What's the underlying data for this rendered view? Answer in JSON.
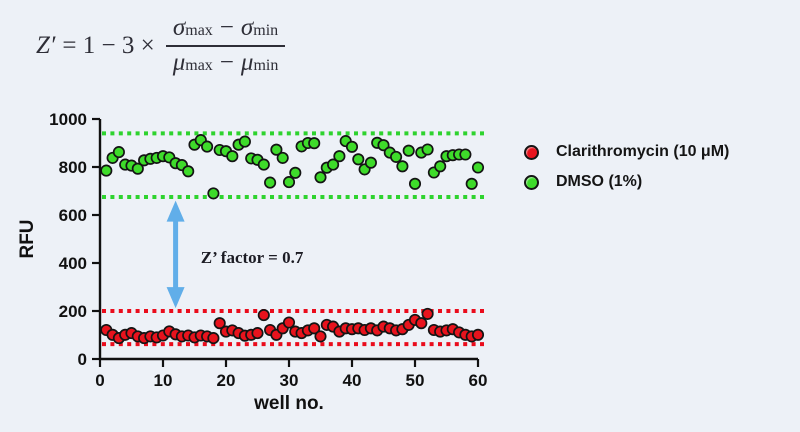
{
  "page": {
    "background": "#edf1f7"
  },
  "formula": {
    "z": "Z′",
    "rhs": "= 1 − 3 ×",
    "sigma": "σ",
    "mu": "μ",
    "max": "max",
    "min": "min",
    "minus": "−"
  },
  "legend": {
    "items": [
      {
        "label": "Clarithromycin (10 μM)",
        "color": "#e8131d"
      },
      {
        "label": "DMSO (1%)",
        "color": "#3edb2a"
      }
    ]
  },
  "chart_data": {
    "type": "scatter",
    "title": "",
    "xlabel": "well no.",
    "ylabel": "RFU",
    "xlim": [
      0,
      60
    ],
    "ylim": [
      0,
      1000
    ],
    "x_ticks": [
      0,
      10,
      20,
      30,
      40,
      50,
      60
    ],
    "y_ticks": [
      0,
      200,
      400,
      600,
      800,
      1000
    ],
    "grid": false,
    "legend_position": "right",
    "annotation": {
      "text": "Z’ factor = 0.7",
      "x": 16,
      "y": 400
    },
    "arrow": {
      "x": 12,
      "from": 660,
      "to": 212,
      "color": "#61aee9"
    },
    "reference_lines": [
      {
        "name": "dmso-upper-limit",
        "value": 940,
        "color": "#2ed32e",
        "style": "dashed"
      },
      {
        "name": "dmso-lower-limit",
        "value": 675,
        "color": "#2ed32e",
        "style": "dashed"
      },
      {
        "name": "clarithromycin-upper-limit",
        "value": 200,
        "color": "#ea0c1c",
        "style": "dashed"
      },
      {
        "name": "clarithromycin-lower-limit",
        "value": 62,
        "color": "#ea0c1c",
        "style": "dashed"
      }
    ],
    "series": [
      {
        "name": "Clarithromycin (10 μM)",
        "color": "#e8131d",
        "x": [
          1,
          2,
          3,
          4,
          5,
          6,
          7,
          8,
          9,
          10,
          11,
          12,
          13,
          14,
          15,
          16,
          17,
          18,
          19,
          20,
          21,
          22,
          23,
          24,
          25,
          26,
          27,
          28,
          29,
          30,
          31,
          32,
          33,
          34,
          35,
          36,
          37,
          38,
          39,
          40,
          41,
          42,
          43,
          44,
          45,
          46,
          47,
          48,
          49,
          50,
          51,
          52,
          53,
          54,
          55,
          56,
          57,
          58,
          59,
          60
        ],
        "values": [
          121,
          101,
          87,
          101,
          108,
          94,
          87,
          94,
          90,
          98,
          115,
          103,
          94,
          98,
          90,
          98,
          94,
          87,
          149,
          114,
          119,
          108,
          97,
          101,
          108,
          183,
          121,
          101,
          128,
          152,
          114,
          108,
          119,
          128,
          94,
          142,
          135,
          114,
          128,
          124,
          128,
          121,
          128,
          119,
          135,
          128,
          119,
          124,
          142,
          163,
          149,
          188,
          121,
          114,
          119,
          124,
          111,
          101,
          94,
          101
        ]
      },
      {
        "name": "DMSO (1%)",
        "color": "#3edb2a",
        "x": [
          1,
          2,
          3,
          4,
          5,
          6,
          7,
          8,
          9,
          10,
          11,
          12,
          13,
          14,
          15,
          16,
          17,
          18,
          19,
          20,
          21,
          22,
          23,
          24,
          25,
          26,
          27,
          28,
          29,
          30,
          31,
          32,
          33,
          34,
          35,
          36,
          37,
          38,
          39,
          40,
          41,
          42,
          43,
          44,
          45,
          46,
          47,
          48,
          49,
          50,
          51,
          52,
          53,
          54,
          55,
          56,
          57,
          58,
          59,
          60
        ],
        "values": [
          785,
          838,
          862,
          810,
          806,
          793,
          828,
          834,
          838,
          845,
          840,
          816,
          808,
          782,
          893,
          912,
          885,
          690,
          871,
          866,
          845,
          893,
          906,
          836,
          830,
          810,
          735,
          872,
          838,
          737,
          776,
          886,
          900,
          899,
          757,
          797,
          810,
          845,
          908,
          884,
          832,
          790,
          818,
          901,
          891,
          860,
          842,
          803,
          868,
          730,
          860,
          873,
          777,
          803,
          845,
          849,
          852,
          852,
          730,
          798
        ]
      }
    ]
  }
}
